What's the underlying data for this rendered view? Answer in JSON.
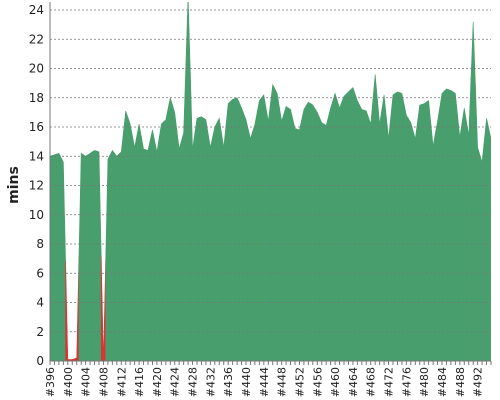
{
  "chart_data": {
    "type": "area",
    "y_label": "mins",
    "categories": [
      "#396",
      null,
      null,
      null,
      "#400",
      null,
      null,
      null,
      "#404",
      null,
      null,
      null,
      "#408",
      null,
      null,
      null,
      "#412",
      null,
      null,
      null,
      "#416",
      null,
      null,
      null,
      "#420",
      null,
      null,
      null,
      "#424",
      null,
      null,
      null,
      "#428",
      null,
      null,
      null,
      "#432",
      null,
      null,
      null,
      "#436",
      null,
      null,
      null,
      "#440",
      null,
      null,
      null,
      "#444",
      null,
      null,
      null,
      "#448",
      null,
      null,
      null,
      "#452",
      null,
      null,
      null,
      "#456",
      null,
      null,
      null,
      "#460",
      null,
      null,
      null,
      "#464",
      null,
      null,
      null,
      "#468",
      null,
      null,
      null,
      "#472",
      null,
      null,
      null,
      "#476",
      null,
      null,
      null,
      "#480",
      null,
      null,
      null,
      "#484",
      null,
      null,
      null,
      "#488",
      null,
      null,
      null,
      "#492",
      null,
      null,
      null
    ],
    "values": [
      14.0,
      14.1,
      14.2,
      13.6,
      0.1,
      0.1,
      0.2,
      14.2,
      14.0,
      14.2,
      14.4,
      14.3,
      0,
      13.8,
      14.4,
      14.0,
      14.3,
      17.1,
      16.2,
      14.6,
      16.2,
      14.5,
      14.4,
      15.8,
      14.3,
      16.2,
      16.5,
      18.0,
      17.0,
      14.5,
      15.6,
      25,
      14.5,
      16.6,
      16.7,
      16.5,
      14.6,
      16.0,
      16.6,
      14.6,
      17.6,
      17.9,
      18.0,
      17.3,
      16.5,
      15.2,
      16.2,
      17.8,
      18.2,
      16.4,
      18.9,
      18.3,
      16.4,
      17.4,
      17.2,
      15.9,
      15.8,
      17.2,
      17.7,
      17.5,
      17.0,
      16.3,
      16.1,
      17.3,
      18.3,
      17.3,
      18.1,
      18.4,
      18.7,
      17.8,
      17.2,
      17.1,
      16.2,
      19.6,
      16.2,
      18.2,
      15.2,
      18.2,
      18.4,
      18.3,
      16.8,
      16.3,
      15.2,
      17.5,
      17.6,
      17.8,
      14.7,
      16.4,
      18.3,
      18.6,
      18.5,
      18.3,
      15.3,
      17.3,
      15.4,
      23.2,
      14.6,
      13.6,
      16.6,
      15.2
    ],
    "colors": [
      "#489e6c",
      "#489e6c",
      "#489e6c",
      "#489e6c",
      "#d93434",
      "#d93434",
      "#d93434",
      "#489e6c",
      "#489e6c",
      "#489e6c",
      "#489e6c",
      "#489e6c",
      "#d93434",
      "#489e6c",
      "#489e6c",
      "#489e6c",
      "#489e6c",
      "#489e6c",
      "#489e6c",
      "#489e6c",
      "#489e6c",
      "#489e6c",
      "#489e6c",
      "#489e6c",
      "#489e6c",
      "#489e6c",
      "#489e6c",
      "#489e6c",
      "#489e6c",
      "#489e6c",
      "#489e6c",
      "#489e6c",
      "#489e6c",
      "#489e6c",
      "#489e6c",
      "#489e6c",
      "#489e6c",
      "#489e6c",
      "#489e6c",
      "#489e6c",
      "#489e6c",
      "#489e6c",
      "#489e6c",
      "#489e6c",
      "#489e6c",
      "#489e6c",
      "#489e6c",
      "#489e6c",
      "#489e6c",
      "#489e6c",
      "#489e6c",
      "#489e6c",
      "#489e6c",
      "#489e6c",
      "#489e6c",
      "#489e6c",
      "#489e6c",
      "#489e6c",
      "#489e6c",
      "#489e6c",
      "#489e6c",
      "#489e6c",
      "#489e6c",
      "#489e6c",
      "#489e6c",
      "#489e6c",
      "#489e6c",
      "#489e6c",
      "#489e6c",
      "#489e6c",
      "#489e6c",
      "#489e6c",
      "#489e6c",
      "#489e6c",
      "#489e6c",
      "#489e6c",
      "#489e6c",
      "#489e6c",
      "#489e6c",
      "#489e6c",
      "#489e6c",
      "#489e6c",
      "#489e6c",
      "#489e6c",
      "#489e6c",
      "#489e6c",
      "#489e6c",
      "#489e6c",
      "#489e6c",
      "#489e6c",
      "#489e6c",
      "#489e6c",
      "#489e6c",
      "#489e6c",
      "#489e6c",
      "#489e6c",
      "#489e6c",
      "#489e6c",
      "#489e6c",
      "#489e6c"
    ],
    "ylim": [
      0,
      24
    ],
    "yticks": [
      0,
      2,
      4,
      6,
      8,
      10,
      12,
      14,
      16,
      18,
      20,
      22,
      24
    ],
    "grid": true
  }
}
